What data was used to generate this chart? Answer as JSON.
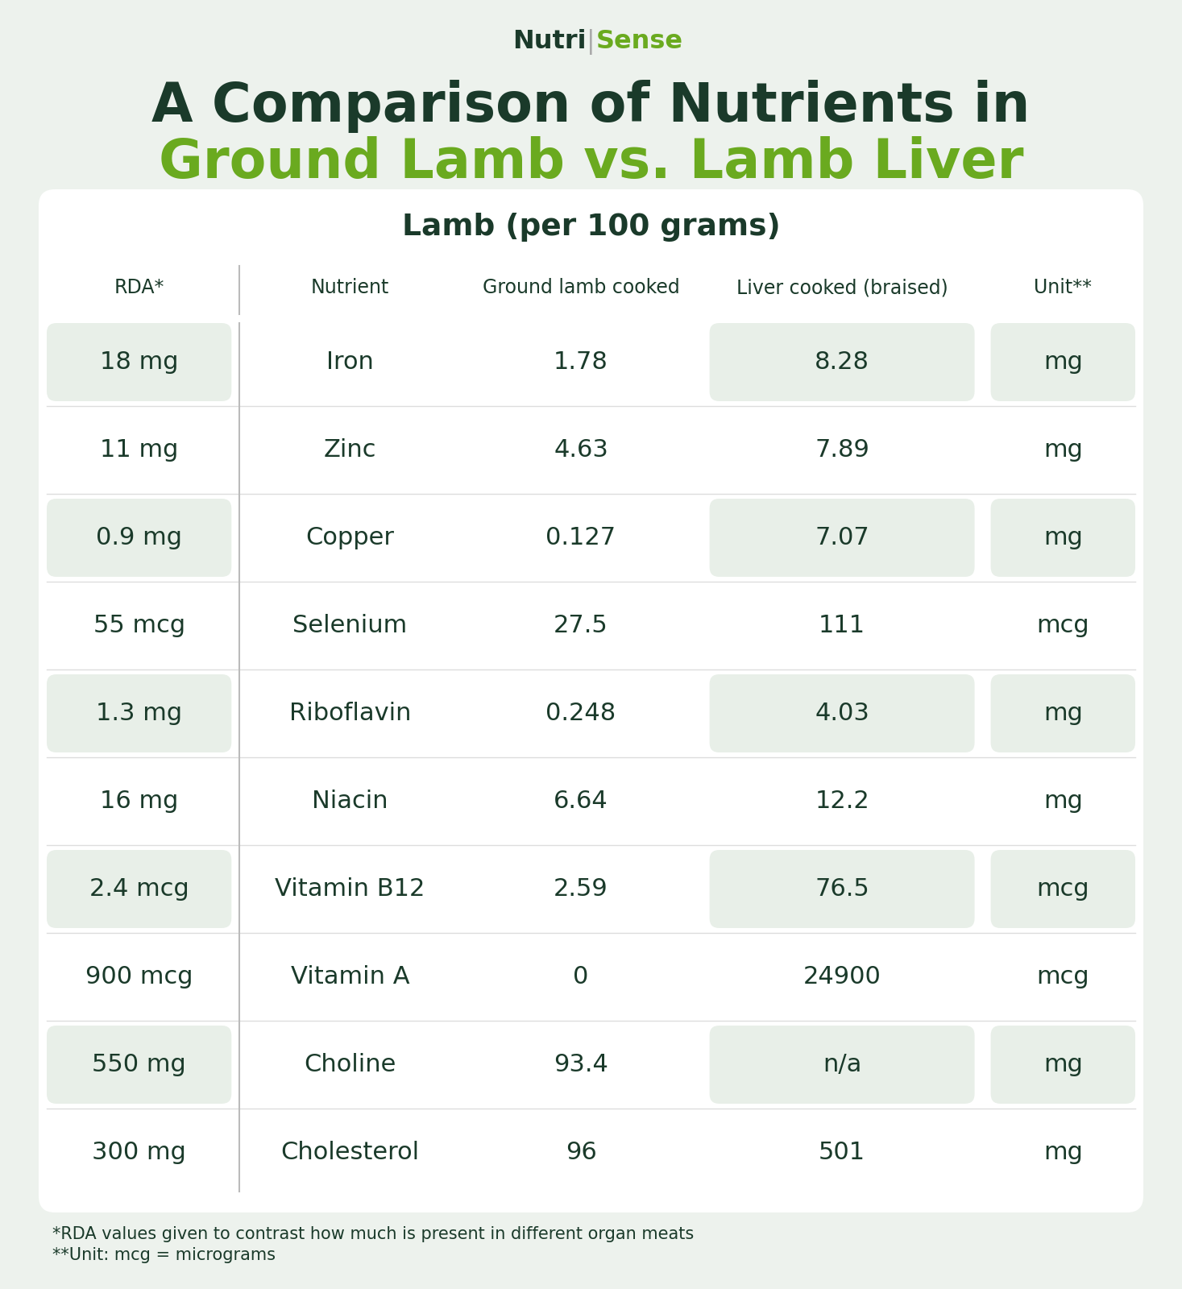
{
  "bg_color": "#edf2ed",
  "card_color": "#ffffff",
  "row_shaded_color": "#e8efe8",
  "text_dark": "#1a3a2a",
  "text_green": "#6aaa1f",
  "logo_nutri": "Nutri",
  "logo_sep": "|",
  "logo_sense": "Sense",
  "title_line1": "A Comparison of Nutrients in",
  "title_line2": "Ground Lamb vs. Lamb Liver",
  "subtitle": "Lamb (per 100 grams)",
  "col_headers": [
    "RDA*",
    "Nutrient",
    "Ground lamb cooked",
    "Liver cooked (braised)",
    "Unit**"
  ],
  "footnote1": "*RDA values given to contrast how much is present in different organ meats",
  "footnote2": "**Unit: mcg = micrograms",
  "rows": [
    {
      "rda": "18 mg",
      "nutrient": "Iron",
      "ground": "1.78",
      "liver": "8.28",
      "unit": "mg",
      "shaded": true
    },
    {
      "rda": "11 mg",
      "nutrient": "Zinc",
      "ground": "4.63",
      "liver": "7.89",
      "unit": "mg",
      "shaded": false
    },
    {
      "rda": "0.9 mg",
      "nutrient": "Copper",
      "ground": "0.127",
      "liver": "7.07",
      "unit": "mg",
      "shaded": true
    },
    {
      "rda": "55 mcg",
      "nutrient": "Selenium",
      "ground": "27.5",
      "liver": "111",
      "unit": "mcg",
      "shaded": false
    },
    {
      "rda": "1.3 mg",
      "nutrient": "Riboflavin",
      "ground": "0.248",
      "liver": "4.03",
      "unit": "mg",
      "shaded": true
    },
    {
      "rda": "16 mg",
      "nutrient": "Niacin",
      "ground": "6.64",
      "liver": "12.2",
      "unit": "mg",
      "shaded": false
    },
    {
      "rda": "2.4 mcg",
      "nutrient": "Vitamin B12",
      "ground": "2.59",
      "liver": "76.5",
      "unit": "mcg",
      "shaded": true
    },
    {
      "rda": "900 mcg",
      "nutrient": "Vitamin A",
      "ground": "0",
      "liver": "24900",
      "unit": "mcg",
      "shaded": false
    },
    {
      "rda": "550 mg",
      "nutrient": "Choline",
      "ground": "93.4",
      "liver": "n/a",
      "unit": "mg",
      "shaded": true
    },
    {
      "rda": "300 mg",
      "nutrient": "Cholesterol",
      "ground": "96",
      "liver": "501",
      "unit": "mg",
      "shaded": false
    }
  ]
}
